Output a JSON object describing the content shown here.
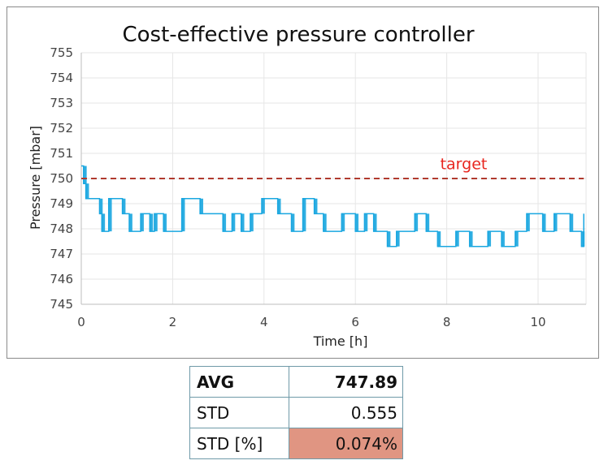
{
  "chart_data": {
    "type": "line",
    "title": "Cost-effective pressure controller",
    "xlabel": "Time [h]",
    "ylabel": "Pressure [mbar]",
    "xlim": [
      0,
      11
    ],
    "ylim": [
      745,
      755
    ],
    "xticks": [
      0,
      2,
      4,
      6,
      8,
      10
    ],
    "yticks": [
      745,
      746,
      747,
      748,
      749,
      750,
      751,
      752,
      753,
      754,
      755
    ],
    "grid": true,
    "series": [
      {
        "name": "Pressure",
        "color": "#1aa7e0",
        "style": "step",
        "x": [
          0,
          0.05,
          0.1,
          0.4,
          0.45,
          0.6,
          0.9,
          1.05,
          1.3,
          1.5,
          1.6,
          1.8,
          2.2,
          2.6,
          3.1,
          3.3,
          3.5,
          3.7,
          3.95,
          4.3,
          4.6,
          4.85,
          5.1,
          5.3,
          5.7,
          6.0,
          6.2,
          6.4,
          6.7,
          6.9,
          7.3,
          7.55,
          7.8,
          8.2,
          8.5,
          8.9,
          9.2,
          9.5,
          9.75,
          10.1,
          10.35,
          10.7,
          10.95,
          11.0
        ],
        "y": [
          750.5,
          749.8,
          749.2,
          748.6,
          747.9,
          749.2,
          748.6,
          747.9,
          748.6,
          747.9,
          748.6,
          747.9,
          749.2,
          748.6,
          747.9,
          748.6,
          747.9,
          748.6,
          749.2,
          748.6,
          747.9,
          749.2,
          748.6,
          747.9,
          748.6,
          747.9,
          748.6,
          747.9,
          747.3,
          747.9,
          748.6,
          747.9,
          747.3,
          747.9,
          747.3,
          747.9,
          747.3,
          747.9,
          748.6,
          747.9,
          748.6,
          747.9,
          747.3,
          748.6
        ]
      },
      {
        "name": "target",
        "color": "#b03a2e",
        "style": "dashed",
        "x": [
          0,
          11
        ],
        "y": [
          750,
          750
        ]
      }
    ],
    "annotations": [
      {
        "text": "target",
        "x": 8.0,
        "y": 750.3,
        "color": "#e8261f"
      }
    ]
  },
  "stats": {
    "rows": [
      {
        "label": "AVG",
        "value": "747.89",
        "bold": true,
        "highlight": null
      },
      {
        "label": "STD",
        "value": "0.555",
        "bold": false,
        "highlight": null
      },
      {
        "label": "STD [%]",
        "value": "0.074%",
        "bold": false,
        "highlight": "#e09582"
      }
    ]
  }
}
